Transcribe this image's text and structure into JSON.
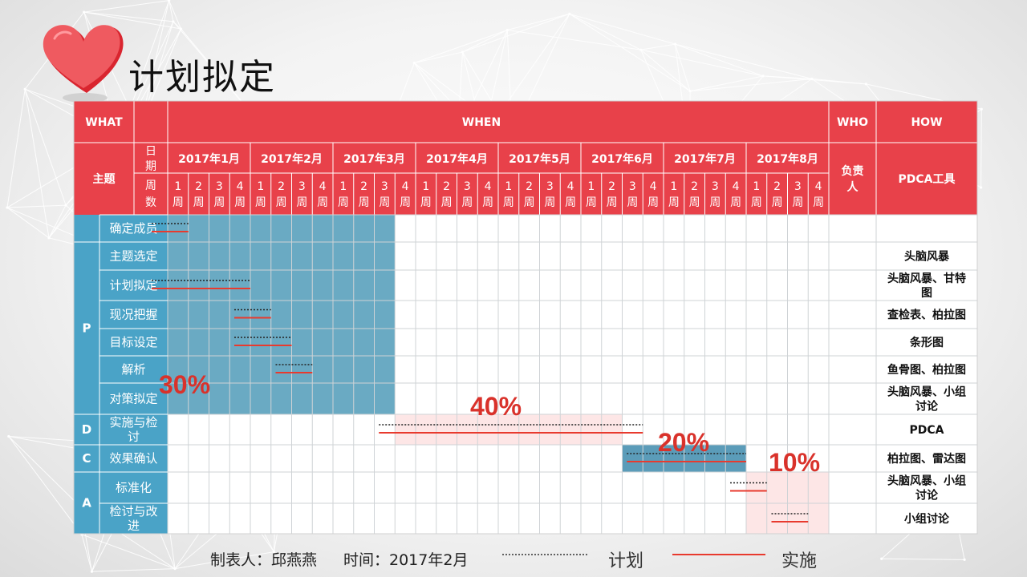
{
  "page": {
    "title": "计划拟定"
  },
  "table": {
    "headers": {
      "what": "WHAT",
      "when": "WHEN",
      "who": "WHO",
      "how": "HOW"
    },
    "theme_label": "主题",
    "date_label": "日期",
    "week_label": "周数",
    "owner_label": "负责人",
    "tool_label": "PDCA工具",
    "months": [
      "2017年1月",
      "2017年2月",
      "2017年3月",
      "2017年4月",
      "2017年5月",
      "2017年6月",
      "2017年7月",
      "2017年8月"
    ],
    "week_numbers": [
      "1",
      "2",
      "3",
      "4"
    ],
    "week_char": "周",
    "phases": [
      {
        "code": "",
        "rows": [
          0
        ]
      },
      {
        "code": "P",
        "rows": [
          1,
          2,
          3,
          4,
          5,
          6
        ]
      },
      {
        "code": "D",
        "rows": [
          7
        ]
      },
      {
        "code": "C",
        "rows": [
          8
        ]
      },
      {
        "code": "A",
        "rows": [
          9,
          10
        ]
      }
    ],
    "rows": [
      {
        "task": "确定成员",
        "tool": ""
      },
      {
        "task": "主题选定",
        "tool": "头脑风暴"
      },
      {
        "task": "计划拟定",
        "tool": "头脑风暴、甘特图"
      },
      {
        "task": "现况把握",
        "tool": "查检表、柏拉图"
      },
      {
        "task": "目标设定",
        "tool": "条形图"
      },
      {
        "task": "解析",
        "tool": "鱼骨图、柏拉图"
      },
      {
        "task": "对策拟定",
        "tool": "头脑风暴、小组讨论"
      },
      {
        "task": "实施与检讨",
        "tool": "PDCA"
      },
      {
        "task": "效果确认",
        "tool": "柏拉图、雷达图"
      },
      {
        "task": "标准化",
        "tool": "头脑风暴、小组讨论"
      },
      {
        "task": "检讨与改进",
        "tool": "小组讨论"
      }
    ],
    "percentages": [
      {
        "label": "30%",
        "phase": "P"
      },
      {
        "label": "40%",
        "phase": "D"
      },
      {
        "label": "20%",
        "phase": "C"
      },
      {
        "label": "10%",
        "phase": "A"
      }
    ],
    "plan_bars": [
      {
        "row": 0,
        "start_week": 1,
        "end_week": 1
      },
      {
        "row": 2,
        "start_week": 1,
        "end_week": 4
      },
      {
        "row": 3,
        "start_week": 5,
        "end_week": 5
      },
      {
        "row": 4,
        "start_week": 5,
        "end_week": 6
      },
      {
        "row": 5,
        "start_week": 7,
        "end_week": 7
      },
      {
        "row": 7,
        "start_week": 12,
        "end_week": 23
      },
      {
        "row": 8,
        "start_week": 24,
        "end_week": 28
      },
      {
        "row": 9,
        "start_week": 29,
        "end_week": 29
      },
      {
        "row": 10,
        "start_week": 31,
        "end_week": 31
      }
    ],
    "actual_bars": [
      {
        "row": 0,
        "start_week": 1,
        "end_week": 1
      },
      {
        "row": 2,
        "start_week": 1,
        "end_week": 4
      },
      {
        "row": 3,
        "start_week": 5,
        "end_week": 5
      },
      {
        "row": 4,
        "start_week": 5,
        "end_week": 6
      },
      {
        "row": 5,
        "start_week": 7,
        "end_week": 7
      },
      {
        "row": 7,
        "start_week": 12,
        "end_week": 23
      },
      {
        "row": 8,
        "start_week": 24,
        "end_week": 28
      },
      {
        "row": 9,
        "start_week": 29,
        "end_week": 29
      },
      {
        "row": 10,
        "start_week": 31,
        "end_week": 31
      }
    ],
    "shaded_regions": [
      {
        "start_week": 1,
        "end_week": 11,
        "first_row": 0,
        "last_row": 6,
        "color": "#6aaac3"
      },
      {
        "start_week": 12,
        "end_week": 22,
        "first_row": 7,
        "last_row": 7,
        "color": "#fde6e6"
      },
      {
        "start_week": 23,
        "end_week": 28,
        "first_row": 8,
        "last_row": 8,
        "color": "#5b9cb9"
      },
      {
        "start_week": 29,
        "end_week": 32,
        "first_row": 9,
        "last_row": 10,
        "color": "#fde6e6"
      }
    ]
  },
  "footer": {
    "maker": "制表人：邱燕燕",
    "time": "时间：2017年2月",
    "legend_plan": "计划",
    "legend_actual": "实施"
  },
  "colors": {
    "header_red": "#e8414a",
    "phase_blue": "#4aa3c7",
    "actual_red": "#e83a2e",
    "percent_red": "#d9322b"
  }
}
